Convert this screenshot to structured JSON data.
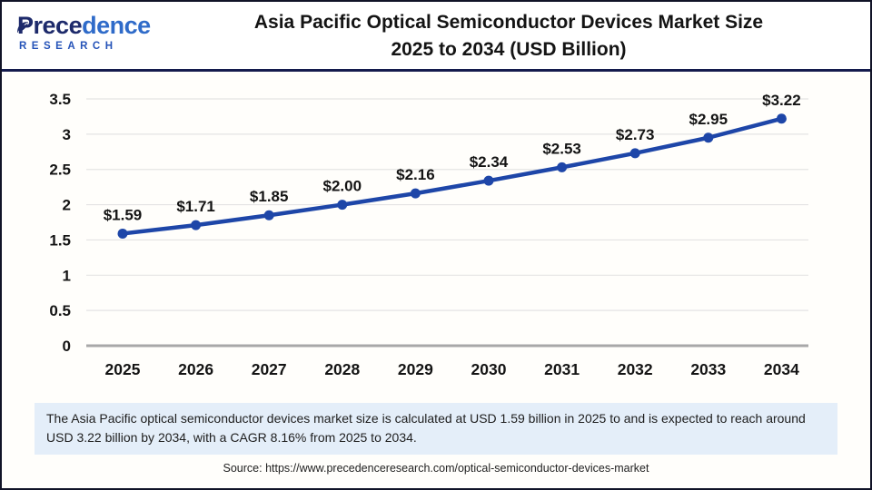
{
  "header": {
    "logo": {
      "brand_dark": "Prece",
      "brand_light": "dence",
      "sub": "RESEARCH"
    },
    "title_line1": "Asia Pacific Optical Semiconductor Devices Market Size",
    "title_line2": "2025 to 2034 (USD Billion)"
  },
  "chart_data": {
    "type": "line",
    "title": "Asia Pacific Optical Semiconductor Devices Market Size 2025 to 2034 (USD Billion)",
    "categories": [
      "2025",
      "2026",
      "2027",
      "2028",
      "2029",
      "2030",
      "2031",
      "2032",
      "2033",
      "2034"
    ],
    "values": [
      1.59,
      1.71,
      1.85,
      2.0,
      2.16,
      2.34,
      2.53,
      2.73,
      2.95,
      3.22
    ],
    "point_labels": [
      "$1.59",
      "$1.71",
      "$1.85",
      "$2.00",
      "$2.16",
      "$2.34",
      "$2.53",
      "$2.73",
      "$2.95",
      "$3.22"
    ],
    "xlabel": "",
    "ylabel": "",
    "ylim": [
      0,
      3.5
    ],
    "yticks": [
      0,
      0.5,
      1,
      1.5,
      2,
      2.5,
      3,
      3.5
    ],
    "grid": true,
    "legend": "none",
    "line_color": "#1e46a8",
    "marker_color": "#1e46a8",
    "gridline_color": "#e4e4e4",
    "axis_line_color": "#a8a8a8",
    "label_color": "#141414"
  },
  "footer": {
    "description": "The Asia Pacific optical semiconductor devices market size is calculated at USD 1.59 billion in 2025 to and is expected to reach around USD 3.22 billion by 2034, with a CAGR 8.16% from 2025 to 2034.",
    "source": "Source: https://www.precedenceresearch.com/optical-semiconductor-devices-market"
  },
  "colors": {
    "accent_blue": "#1e46a8",
    "brand_navy": "#1d2a6b",
    "brand_blue": "#2f6bc9",
    "divider_navy": "#141b4d",
    "desc_bg": "#e4eef9"
  }
}
